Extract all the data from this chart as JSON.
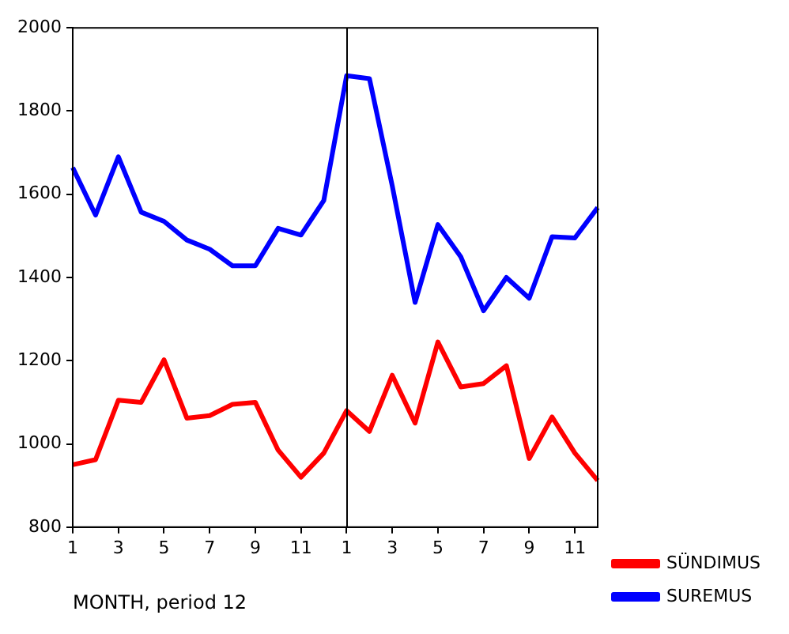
{
  "chart_data": {
    "type": "line",
    "xlabel": "MONTH, period 12",
    "categories": [
      "1",
      null,
      "3",
      null,
      "5",
      null,
      "7",
      null,
      "9",
      null,
      "11",
      null,
      "1",
      null,
      "3",
      null,
      "5",
      null,
      "7",
      null,
      "9",
      null,
      "11",
      null
    ],
    "ylim": [
      800,
      2000
    ],
    "yticks": [
      800,
      1000,
      1200,
      1400,
      1600,
      1800,
      2000
    ],
    "series": [
      {
        "name": "SÜNDIMUS",
        "color": "#ff0000",
        "values": [
          950,
          962,
          1105,
          1100,
          1202,
          1062,
          1068,
          1095,
          1100,
          985,
          920,
          978,
          1080,
          1030,
          1165,
          1050,
          1245,
          1137,
          1145,
          1188,
          965,
          1065,
          978,
          912
        ]
      },
      {
        "name": "SUREMUS",
        "color": "#0000ff",
        "values": [
          1664,
          1550,
          1690,
          1557,
          1535,
          1490,
          1468,
          1428,
          1428,
          1518,
          1502,
          1585,
          1885,
          1878,
          1620,
          1340,
          1527,
          1450,
          1320,
          1400,
          1350,
          1498,
          1495,
          1568
        ]
      }
    ],
    "grid": false,
    "legend": "right",
    "marker": "none",
    "line_style": "solid"
  }
}
